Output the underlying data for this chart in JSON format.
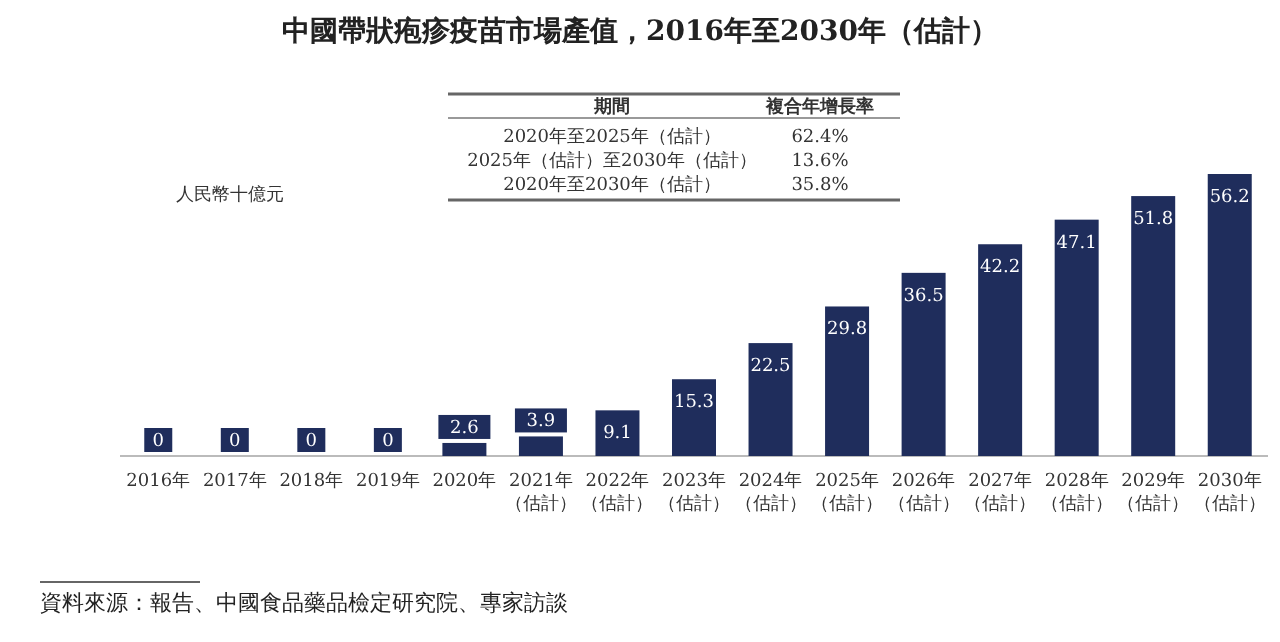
{
  "chart_data": {
    "type": "bar",
    "title": "中國帶狀疱疹疫苗市場產值，2016年至2030年（估計）",
    "ylabel": "人民幣十億元",
    "categories": [
      "2016年",
      "2017年",
      "2018年",
      "2019年",
      "2020年",
      "2021年（估計）",
      "2022年（估計）",
      "2023年（估計）",
      "2024年（估計）",
      "2025年（估計）",
      "2026年（估計）",
      "2027年（估計）",
      "2028年（估計）",
      "2029年（估計）",
      "2030年（估計）"
    ],
    "values": [
      0,
      0,
      0,
      0,
      2.6,
      3.9,
      9.1,
      15.3,
      22.5,
      29.8,
      36.5,
      42.2,
      47.1,
      51.8,
      56.2
    ],
    "color": "#1f2d5c",
    "data_labels": true,
    "annotations": [
      "期間",
      "複合年增長率",
      "2020年至2025年（估計）",
      "62.4%",
      "2025年（估計）至2030年（估計）",
      "13.6%",
      "2020年至2030年（估計）",
      "35.8%",
      "資料來源：報告、中國食品藥品檢定研究院、專家訪談"
    ]
  }
}
